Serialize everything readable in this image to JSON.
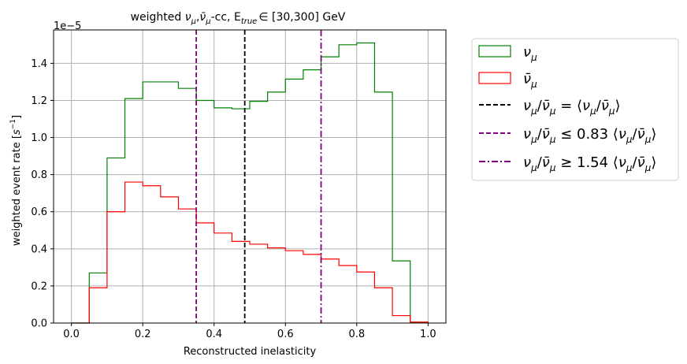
{
  "chart_data": {
    "type": "step-histogram",
    "title": "weighted ν_μ, ν̄_μ-cc, E_true ∈ [30,300] GeV",
    "title_parts": {
      "lead": "weighted ",
      "nu": "ν",
      "mu": "μ",
      "comma": ",",
      "nubar": "ν̄",
      "cc": "-cc, E",
      "true": "true",
      "range": "∈  [30,300] GeV"
    },
    "xlabel": "Reconstructed inelasticity",
    "ylabel": "weighted event rate [s⁻¹]",
    "ylabel_parts": {
      "main": "weighted event rate [",
      "s": "s",
      "exp": "−1",
      "close": "]"
    },
    "offset_text": "1e−5",
    "xlim": [
      -0.05,
      1.05
    ],
    "ylim": [
      0.0,
      1.58
    ],
    "xticks": [
      0.0,
      0.2,
      0.4,
      0.6,
      0.8,
      1.0
    ],
    "xtick_labels": [
      "0.0",
      "0.2",
      "0.4",
      "0.6",
      "0.8",
      "1.0"
    ],
    "yticks": [
      0.0,
      0.2,
      0.4,
      0.6,
      0.8,
      1.0,
      1.2,
      1.4
    ],
    "ytick_labels": [
      "0.0",
      "0.2",
      "0.4",
      "0.6",
      "0.8",
      "1.0",
      "1.2",
      "1.4"
    ],
    "grid": true,
    "legend_position": "outside-right",
    "bin_edges": [
      0.0,
      0.05,
      0.1,
      0.15,
      0.2,
      0.25,
      0.3,
      0.35,
      0.4,
      0.45,
      0.5,
      0.55,
      0.6,
      0.65,
      0.7,
      0.75,
      0.8,
      0.85,
      0.9,
      0.95,
      1.0
    ],
    "series": [
      {
        "name": "ν_μ",
        "color": "#008000",
        "values": [
          0.0,
          0.27,
          0.89,
          1.21,
          1.3,
          1.3,
          1.265,
          1.2,
          1.16,
          1.155,
          1.195,
          1.245,
          1.315,
          1.365,
          1.435,
          1.5,
          1.51,
          1.245,
          0.335,
          0.005
        ]
      },
      {
        "name": "ν̄_μ",
        "color": "#ff0000",
        "values": [
          0.0,
          0.19,
          0.6,
          0.76,
          0.74,
          0.68,
          0.615,
          0.54,
          0.485,
          0.44,
          0.425,
          0.405,
          0.39,
          0.37,
          0.345,
          0.31,
          0.275,
          0.19,
          0.04,
          0.005
        ]
      }
    ],
    "vlines": [
      {
        "x": 0.486,
        "color": "#000000",
        "style": "dashed"
      },
      {
        "x": 0.35,
        "color": "#800080",
        "style": "dashed"
      },
      {
        "x": 0.7,
        "color": "#800080",
        "style": "dashdot"
      }
    ],
    "legend": [
      {
        "kind": "patch",
        "color": "#008000",
        "label": "ν_μ"
      },
      {
        "kind": "patch",
        "color": "#ff0000",
        "label": "ν̄_μ"
      },
      {
        "kind": "line",
        "color": "#000000",
        "style": "dashed",
        "label": "ν_μ/ν̄_μ = ⟨ν_μ/ν̄_μ⟩"
      },
      {
        "kind": "line",
        "color": "#800080",
        "style": "dashed",
        "label": "ν_μ/ν̄_μ ≤ 0.83 ⟨ν_μ/ν̄_μ⟩"
      },
      {
        "kind": "line",
        "color": "#800080",
        "style": "dashdot",
        "label": "ν_μ/ν̄_μ ≥ 1.54 ⟨ν_μ/ν̄_μ⟩"
      }
    ],
    "legend_parts": {
      "nu": "ν",
      "mu": "μ",
      "nubar": "ν̄",
      "slash": "/",
      "eq": " = ⟨",
      "le": " ≤  0.83 ⟨",
      "ge": " ≥  1.54 ⟨",
      "close": "⟩"
    }
  }
}
